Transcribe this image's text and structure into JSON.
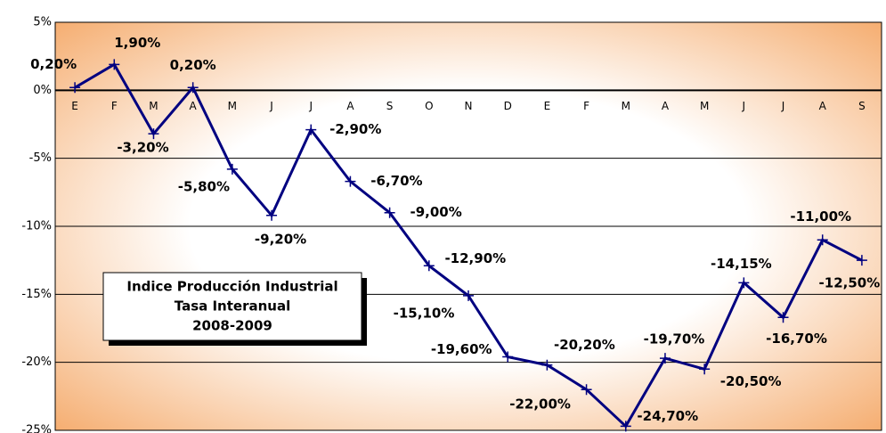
{
  "chart_data": {
    "type": "line",
    "title": [
      "Indice Producción Industrial",
      "Tasa Interanual",
      "2008-2009"
    ],
    "categories": [
      "E",
      "F",
      "M",
      "A",
      "M",
      "J",
      "J",
      "A",
      "S",
      "O",
      "N",
      "D",
      "E",
      "F",
      "M",
      "A",
      "M",
      "J",
      "J",
      "A",
      "S"
    ],
    "series": [
      {
        "name": null,
        "color": "#000080",
        "values": [
          0.2,
          1.9,
          -3.2,
          0.2,
          -5.8,
          -9.2,
          -2.9,
          -6.7,
          -9.0,
          -12.9,
          -15.1,
          -19.6,
          -20.2,
          -22.0,
          -24.7,
          -19.7,
          -20.5,
          -14.15,
          -16.7,
          -11.0,
          -12.5
        ],
        "value_labels": [
          "0,20%",
          "1,90%",
          "-3,20%",
          "0,20%",
          "-5,80%",
          "-9,20%",
          "-2,90%",
          "-6,70%",
          "-9,00%",
          "-12,90%",
          "-15,10%",
          "-19,60%",
          "-20,20%",
          "-22,00%",
          "-24,70%",
          "-19,70%",
          "-20,50%",
          "-14,15%",
          "-16,70%",
          "-11,00%",
          "-12,50%"
        ]
      }
    ],
    "ylim": [
      -25,
      5
    ],
    "yticks": [
      {
        "value": 5,
        "label": "5%"
      },
      {
        "value": 0,
        "label": "0%"
      },
      {
        "value": -5,
        "label": "-5%"
      },
      {
        "value": -10,
        "label": "-10%"
      },
      {
        "value": -15,
        "label": "-15%"
      },
      {
        "value": -20,
        "label": "-20%"
      },
      {
        "value": -25,
        "label": "-25%"
      }
    ],
    "grid": true
  }
}
